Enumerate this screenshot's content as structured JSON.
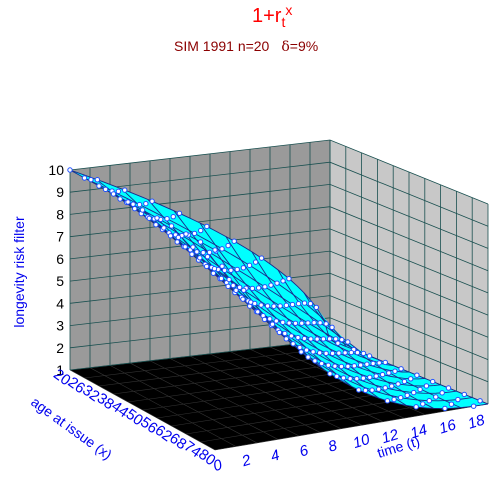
{
  "chart_data": {
    "type": "surface",
    "title_main": "1+r",
    "title_sub_t": "t",
    "title_sup_x": "x",
    "subtitle_text": "SIM 1991 n=20",
    "subtitle_delta": "δ",
    "subtitle_delta_value": "=9%",
    "zlabel": "longevity risk filter",
    "xlabel": "time (t)",
    "ylabel": "age at issue (x)",
    "z_ticks": [
      1,
      2,
      3,
      4,
      5,
      6,
      7,
      8,
      9,
      10
    ],
    "t_ticks": [
      0,
      2,
      4,
      6,
      8,
      10,
      12,
      14,
      16,
      18
    ],
    "x_ticks": [
      20,
      26,
      32,
      38,
      44,
      50,
      56,
      62,
      68,
      74,
      80
    ],
    "t_range": [
      0,
      19
    ],
    "x_range": [
      20,
      80
    ],
    "z_range": [
      1,
      10
    ],
    "surface": {
      "description_values": "z(t, x) = 1 + 9 * (1 - t/19)^p(x), p(x) from 0.6 (x=20) to 2.3 (x=80)",
      "z_at_t0": 10,
      "z_at_t19": 1
    },
    "colors": {
      "surface": "#00ffff",
      "surface_grid": "#1a2a8c",
      "markers": "#1e50ff",
      "back_wall": "#9a9a9a",
      "side_wall": "#c8c8c8",
      "floor": "#000000",
      "wall_grid": "#1a5050"
    }
  }
}
